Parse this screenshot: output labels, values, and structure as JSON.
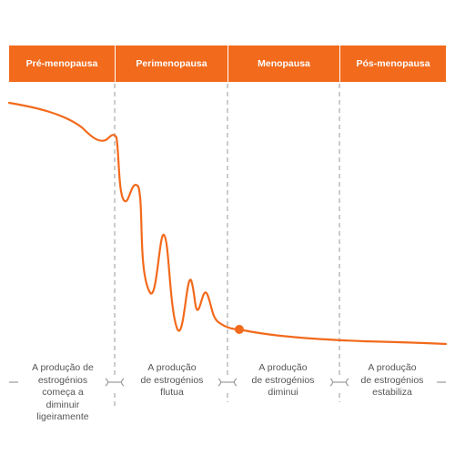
{
  "phases": [
    {
      "name": "Pré-menopausa",
      "description": [
        "A produção de",
        "estrogénios",
        "começa a",
        "diminuir",
        "ligeiramente"
      ]
    },
    {
      "name": "Perimenopausa",
      "description": [
        "A produção",
        "de estrogénios",
        "flutua"
      ]
    },
    {
      "name": "Menopausa",
      "description": [
        "A produção",
        "de estrogénios",
        "diminui"
      ]
    },
    {
      "name": "Pós-menopausa",
      "description": [
        "A produção",
        "de estrogénios",
        "estabiliza"
      ]
    }
  ],
  "colors": {
    "accent": "#f26a1c",
    "header_text": "#ffffff",
    "divider": "#9a9a9a",
    "description_text": "#555555"
  }
}
